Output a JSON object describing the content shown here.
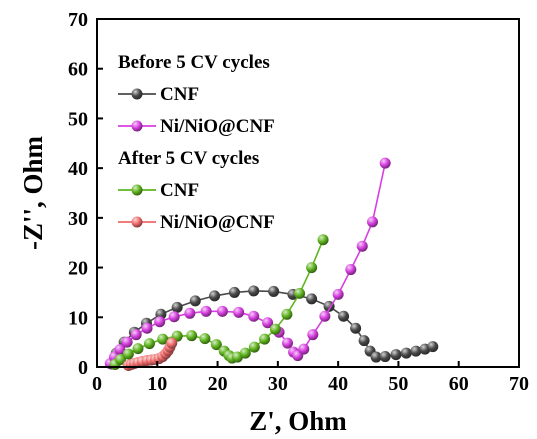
{
  "chart_data": {
    "type": "scatter",
    "xlabel": "Z', Ohm",
    "ylabel": "-Z'', Ohm",
    "xlim": [
      0,
      70
    ],
    "ylim": [
      0,
      70
    ],
    "xticks": [
      0,
      10,
      20,
      30,
      40,
      50,
      60,
      70
    ],
    "yticks": [
      0,
      10,
      20,
      30,
      40,
      50,
      60,
      70
    ],
    "grid": false,
    "legend_position": "top-left",
    "legend_groups": [
      {
        "title": "Before 5 CV cycles",
        "series": [
          0,
          1
        ]
      },
      {
        "title": "After 5 CV cycles",
        "series": [
          2,
          3
        ]
      }
    ],
    "series": [
      {
        "name": "CNF",
        "color": "#4a4a4a",
        "marker": "ball",
        "x": [
          2.4,
          3.2,
          4.5,
          6.2,
          8.2,
          10.6,
          13.3,
          16.3,
          19.5,
          22.8,
          26.0,
          29.3,
          32.5,
          35.6,
          38.5,
          40.9,
          42.9,
          44.3,
          45.3,
          46.3,
          47.8,
          49.6,
          51.3,
          52.9,
          54.4,
          55.7
        ],
        "y": [
          0.6,
          2.8,
          5.0,
          7.0,
          8.8,
          10.6,
          12.0,
          13.3,
          14.3,
          15.0,
          15.3,
          15.2,
          14.6,
          13.7,
          12.2,
          10.2,
          7.8,
          5.3,
          3.2,
          2.0,
          2.1,
          2.5,
          2.8,
          3.2,
          3.6,
          4.1
        ]
      },
      {
        "name": "Ni/NiO@CNF",
        "color": "#d63fe0",
        "marker": "ball",
        "x": [
          2.2,
          2.9,
          3.8,
          5.0,
          6.5,
          8.3,
          10.4,
          12.8,
          15.4,
          18.1,
          20.8,
          23.5,
          26.0,
          28.3,
          30.2,
          31.6,
          32.6,
          33.3,
          34.3,
          35.8,
          37.8,
          40.0,
          42.1,
          44.0,
          45.7,
          47.8
        ],
        "y": [
          0.7,
          2.0,
          3.5,
          5.0,
          6.5,
          7.8,
          9.1,
          10.1,
          10.8,
          11.2,
          11.2,
          11.0,
          10.2,
          8.9,
          7.0,
          4.8,
          3.0,
          2.3,
          3.6,
          6.5,
          10.2,
          14.6,
          19.6,
          24.3,
          29.2,
          41.0
        ]
      },
      {
        "name": "CNF",
        "color": "#5fb41f",
        "marker": "ball",
        "x": [
          3.0,
          3.9,
          5.2,
          6.8,
          8.7,
          10.9,
          13.3,
          15.7,
          17.9,
          19.8,
          21.1,
          21.9,
          22.4,
          23.3,
          24.6,
          26.1,
          27.8,
          29.6,
          31.5,
          33.6,
          35.6,
          37.5
        ],
        "y": [
          0.5,
          1.5,
          2.6,
          3.7,
          4.7,
          5.6,
          6.2,
          6.3,
          5.7,
          4.5,
          3.2,
          2.3,
          1.8,
          2.0,
          2.8,
          4.0,
          5.6,
          7.6,
          10.6,
          14.8,
          20.0,
          25.6
        ]
      },
      {
        "name": "Ni/NiO@CNF",
        "color": "#ef6a6a",
        "marker": "ball",
        "x": [
          5.2,
          5.7,
          6.2,
          6.8,
          7.5,
          8.3,
          9.0,
          9.7,
          10.3,
          10.9,
          11.4,
          11.8,
          12.1,
          12.4
        ],
        "y": [
          0.3,
          0.5,
          0.7,
          0.9,
          1.1,
          1.3,
          1.4,
          1.5,
          1.7,
          2.1,
          2.7,
          3.3,
          4.0,
          4.8
        ]
      }
    ]
  }
}
